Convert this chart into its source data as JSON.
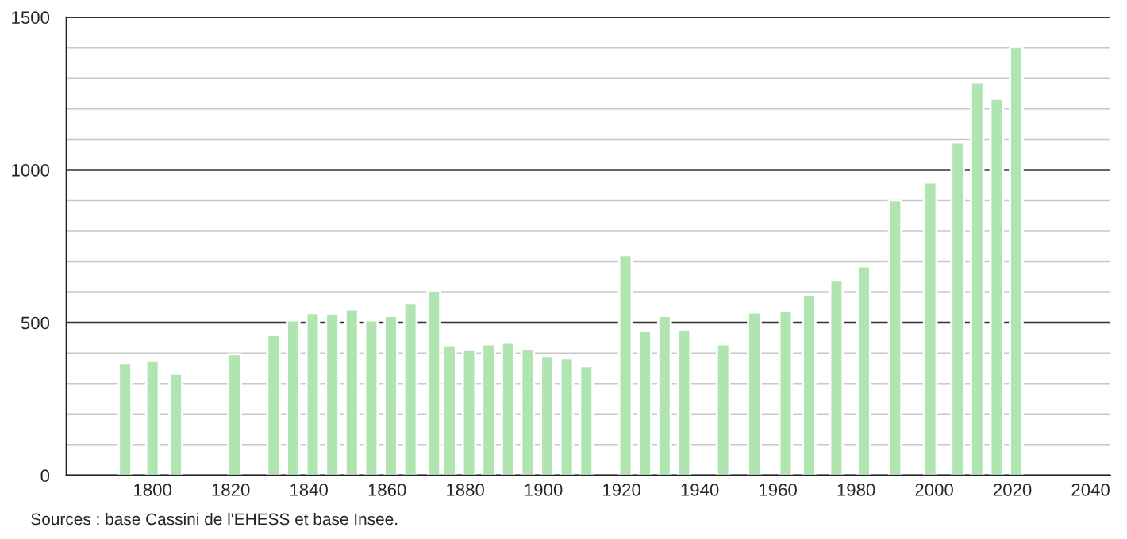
{
  "chart_data": {
    "type": "bar",
    "color": "#b0e4b0",
    "x": [
      1793,
      1800,
      1806,
      1821,
      1831,
      1836,
      1841,
      1846,
      1851,
      1856,
      1861,
      1866,
      1872,
      1876,
      1881,
      1886,
      1891,
      1896,
      1901,
      1906,
      1911,
      1921,
      1926,
      1931,
      1936,
      1946,
      1954,
      1962,
      1968,
      1975,
      1982,
      1990,
      1999,
      2006,
      2011,
      2016,
      2021
    ],
    "values": [
      368,
      375,
      333,
      397,
      460,
      508,
      532,
      529,
      544,
      508,
      522,
      563,
      606,
      425,
      411,
      430,
      435,
      415,
      389,
      384,
      358,
      721,
      473,
      522,
      477,
      430,
      534,
      539,
      591,
      638,
      684,
      900,
      959,
      1089,
      1286,
      1234,
      1405
    ],
    "xlim": [
      1778,
      2045
    ],
    "xticks": [
      1800,
      1820,
      1840,
      1860,
      1880,
      1900,
      1920,
      1940,
      1960,
      1980,
      2000,
      2020,
      2040
    ],
    "ylim": [
      0,
      1500
    ],
    "yticks": [
      0,
      {
        "value": 100,
        "label": null
      },
      {
        "value": 200,
        "label": null
      },
      {
        "value": 300,
        "label": null
      },
      {
        "value": 400,
        "label": null
      },
      500,
      {
        "value": 600,
        "label": null
      },
      {
        "value": 700,
        "label": null
      },
      {
        "value": 800,
        "label": null
      },
      {
        "value": 900,
        "label": null
      },
      1000,
      {
        "value": 1100,
        "label": null
      },
      {
        "value": 1200,
        "label": null
      },
      {
        "value": 1300,
        "label": null
      },
      {
        "value": 1400,
        "label": null
      },
      1500
    ],
    "grid": "y",
    "annotations": [
      "Sources : base Cassini de l'EHESS et base Insee."
    ]
  }
}
